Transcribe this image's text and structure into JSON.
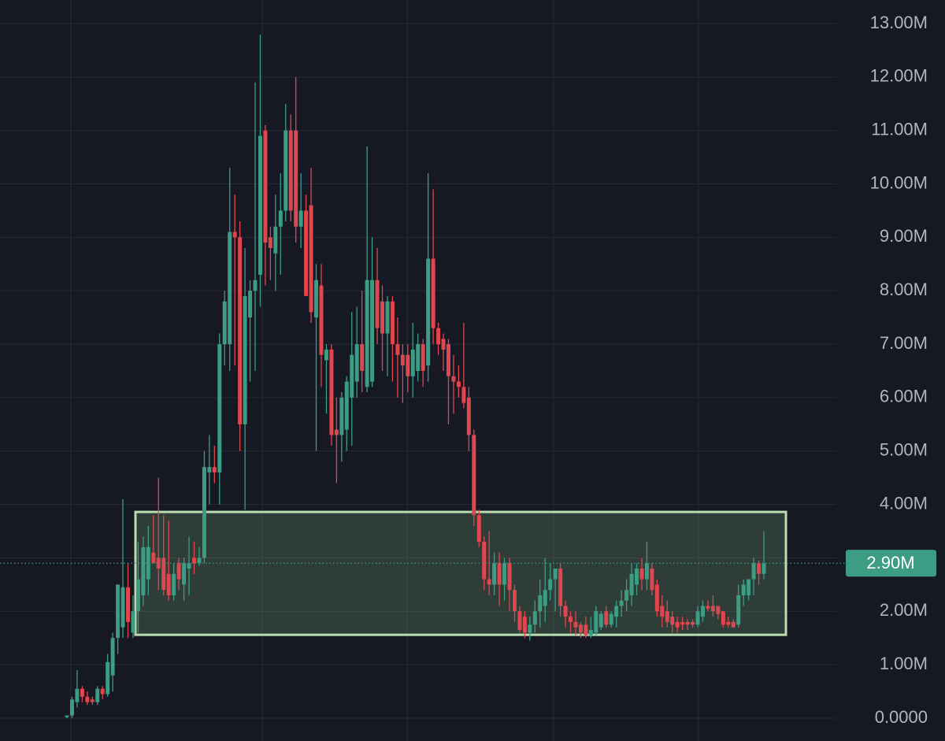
{
  "chart_data": {
    "type": "candlestick",
    "ylim": [
      0,
      13000000
    ],
    "yticks": [
      {
        "value": 0,
        "label": "0.0000"
      },
      {
        "value": 1000000,
        "label": "1.00M"
      },
      {
        "value": 2000000,
        "label": "2.00M"
      },
      {
        "value": 3000000,
        "label": "3.00M"
      },
      {
        "value": 4000000,
        "label": "4.00M"
      },
      {
        "value": 5000000,
        "label": "5.00M"
      },
      {
        "value": 6000000,
        "label": "6.00M"
      },
      {
        "value": 7000000,
        "label": "7.00M"
      },
      {
        "value": 8000000,
        "label": "8.00M"
      },
      {
        "value": 9000000,
        "label": "9.00M"
      },
      {
        "value": 10000000,
        "label": "10.00M"
      },
      {
        "value": 11000000,
        "label": "11.00M"
      },
      {
        "value": 12000000,
        "label": "12.00M"
      },
      {
        "value": 13000000,
        "label": "13.00M"
      }
    ],
    "grid": true,
    "up_color": "#3d9c84",
    "down_color": "#e0464e",
    "open": [
      20000,
      50000,
      300000,
      550000,
      400000,
      350000,
      300000,
      550000,
      450000,
      800000,
      1500000,
      1700000,
      2450000,
      1600000,
      2000000,
      2300000,
      2600000,
      3100000,
      3000000,
      3000000,
      2700000,
      2300000,
      2900000,
      2500000,
      2800000,
      3000000,
      2900000,
      3000000,
      4600000,
      4700000,
      4600000,
      7000000,
      7000000,
      9100000,
      9000000,
      5500000,
      7500000,
      8000000,
      8300000,
      11000000,
      9000000,
      8700000,
      9200000,
      9500000,
      11000000,
      11000000,
      9200000,
      9500000,
      9600000,
      7500000,
      8100000,
      6700000,
      6900000,
      5400000,
      5300000,
      5400000,
      6000000,
      6300000,
      7000000,
      6200000,
      6300000,
      8200000,
      7800000,
      7200000,
      7800000,
      7000000,
      6800000,
      6800000,
      6400000,
      6500000,
      7000000,
      6600000,
      8600000,
      7300000,
      7100000,
      7000000,
      6400000,
      6300000,
      6200000,
      6000000,
      5300000,
      3800000,
      3300000,
      2600000,
      2500000,
      2900000,
      2500000,
      2900000,
      2400000,
      2000000,
      1900000,
      1600000,
      1750000,
      2000000,
      2100000,
      2400000,
      2600000,
      2800000,
      2100000,
      1900000,
      1800000,
      1750000,
      1750000,
      1550000,
      1600000,
      1700000,
      2000000,
      1750000,
      1900000,
      2100000,
      2200000,
      2300000,
      2500000,
      2800000,
      2600000,
      2800000,
      2500000,
      2100000,
      2000000,
      1900000,
      1800000,
      1800000,
      1800000,
      1800000,
      1750000,
      1900000,
      2100000,
      2100000,
      2100000,
      2000000,
      1800000,
      1800000,
      1750000,
      2300000,
      2300000,
      2600000,
      2900000,
      2700000
    ],
    "high": [
      50000,
      400000,
      900000,
      600000,
      500000,
      400000,
      600000,
      600000,
      1200000,
      1600000,
      2500000,
      4100000,
      2900000,
      2300000,
      3300000,
      3400000,
      3600000,
      3800000,
      4500000,
      3800000,
      3700000,
      2900000,
      3000000,
      3000000,
      3400000,
      3300000,
      3200000,
      5000000,
      5300000,
      5100000,
      7200000,
      8000000,
      10300000,
      9800000,
      9300000,
      8800000,
      8200000,
      11900000,
      12800000,
      11100000,
      9200000,
      9800000,
      10200000,
      11500000,
      11300000,
      12000000,
      10200000,
      9800000,
      10300000,
      8500000,
      8500000,
      7000000,
      7000000,
      6000000,
      6100000,
      6400000,
      7600000,
      7700000,
      8000000,
      10700000,
      9000000,
      8800000,
      8100000,
      7900000,
      7900000,
      7500000,
      7000000,
      7000000,
      7400000,
      7200000,
      7100000,
      10200000,
      9900000,
      7400000,
      7200000,
      7100000,
      6800000,
      6600000,
      7400000,
      6200000,
      5400000,
      3900000,
      3400000,
      3500000,
      3100000,
      3100000,
      3000000,
      3000000,
      2500000,
      2100000,
      2000000,
      1900000,
      2200000,
      2600000,
      3000000,
      2900000,
      2800000,
      2900000,
      2200000,
      2000000,
      2000000,
      1800000,
      1900000,
      1900000,
      2100000,
      2000000,
      2100000,
      2000000,
      2200000,
      2400000,
      2600000,
      2900000,
      2900000,
      3000000,
      3300000,
      2900000,
      2600000,
      2300000,
      2200000,
      2000000,
      1900000,
      1900000,
      1850000,
      1850000,
      2100000,
      2200000,
      2200000,
      2300000,
      2100000,
      2000000,
      1900000,
      1850000,
      2500000,
      2600000,
      2600000,
      3000000,
      2950000,
      3500000
    ],
    "low": [
      0,
      0,
      200000,
      300000,
      250000,
      250000,
      250000,
      350000,
      400000,
      500000,
      1200000,
      1500000,
      1500000,
      1500000,
      1600000,
      2100000,
      2300000,
      2900000,
      2400000,
      2300000,
      2200000,
      2200000,
      2400000,
      2200000,
      2300000,
      2700000,
      2850000,
      2900000,
      4000000,
      4400000,
      4000000,
      6600000,
      6500000,
      6600000,
      5000000,
      3900000,
      6300000,
      6500000,
      7700000,
      8100000,
      8200000,
      8000000,
      8300000,
      9300000,
      9300000,
      8900000,
      8800000,
      7900000,
      7400000,
      5000000,
      6200000,
      5700000,
      5100000,
      4400000,
      4800000,
      5000000,
      5100000,
      6000000,
      6100000,
      6100000,
      6200000,
      7000000,
      6500000,
      6400000,
      6300000,
      6000000,
      5900000,
      6100000,
      6000000,
      6300000,
      6200000,
      6300000,
      7000000,
      6800000,
      6500000,
      5500000,
      5700000,
      6000000,
      5800000,
      5000000,
      3600000,
      3200000,
      2400000,
      2300000,
      2300000,
      2100000,
      2200000,
      2000000,
      1800000,
      1600000,
      1500000,
      1450000,
      1600000,
      1700000,
      1800000,
      2200000,
      2000000,
      1900000,
      1700000,
      1600000,
      1550000,
      1500000,
      1500000,
      1500000,
      1550000,
      1650000,
      1700000,
      1700000,
      1700000,
      1900000,
      2000000,
      2100000,
      2300000,
      2400000,
      2400000,
      2300000,
      1900000,
      1700000,
      1700000,
      1600000,
      1600000,
      1650000,
      1650000,
      1700000,
      1700000,
      1800000,
      2000000,
      1900000,
      1850000,
      1700000,
      1700000,
      1700000,
      1700000,
      2100000,
      2200000,
      2300000,
      2500000,
      2600000
    ],
    "close": [
      50000,
      350000,
      550000,
      400000,
      300000,
      300000,
      550000,
      450000,
      1050000,
      1500000,
      2500000,
      2450000,
      1800000,
      2000000,
      2600000,
      3200000,
      3200000,
      2900000,
      2800000,
      2400000,
      2300000,
      2700000,
      2600000,
      2900000,
      2900000,
      2900000,
      3000000,
      4700000,
      4700000,
      4600000,
      7000000,
      7800000,
      9100000,
      9000000,
      5500000,
      7900000,
      8000000,
      8200000,
      10900000,
      8900000,
      8800000,
      9200000,
      9500000,
      11000000,
      9500000,
      9200000,
      9500000,
      7900000,
      7600000,
      8200000,
      6800000,
      6900000,
      5300000,
      5300000,
      6000000,
      6300000,
      6800000,
      7000000,
      6500000,
      8200000,
      8200000,
      7300000,
      7200000,
      7800000,
      7000000,
      6800000,
      6600000,
      6400000,
      6900000,
      7000000,
      6500000,
      8600000,
      7300000,
      7000000,
      6900000,
      6400000,
      6300000,
      6200000,
      5900000,
      5300000,
      3800000,
      3300000,
      2600000,
      2500000,
      2900000,
      2500000,
      2900000,
      2400000,
      2000000,
      1650000,
      1600000,
      1750000,
      2000000,
      2300000,
      2400000,
      2600000,
      2800000,
      2100000,
      1900000,
      1800000,
      1700000,
      1600000,
      1550000,
      1650000,
      2000000,
      1950000,
      1750000,
      1950000,
      2100000,
      2200000,
      2400000,
      2700000,
      2800000,
      2600000,
      2900000,
      2400000,
      2000000,
      1900000,
      1800000,
      1750000,
      1700000,
      1750000,
      1750000,
      1750000,
      2000000,
      2100000,
      2050000,
      2000000,
      1950000,
      1750000,
      1750000,
      1700000,
      2300000,
      2500000,
      2600000,
      2900000,
      2700000,
      2900000
    ],
    "box": {
      "top": 3860000,
      "bottom": 1560000
    },
    "last_price": {
      "value": 2900000,
      "label": "2.90M"
    }
  }
}
